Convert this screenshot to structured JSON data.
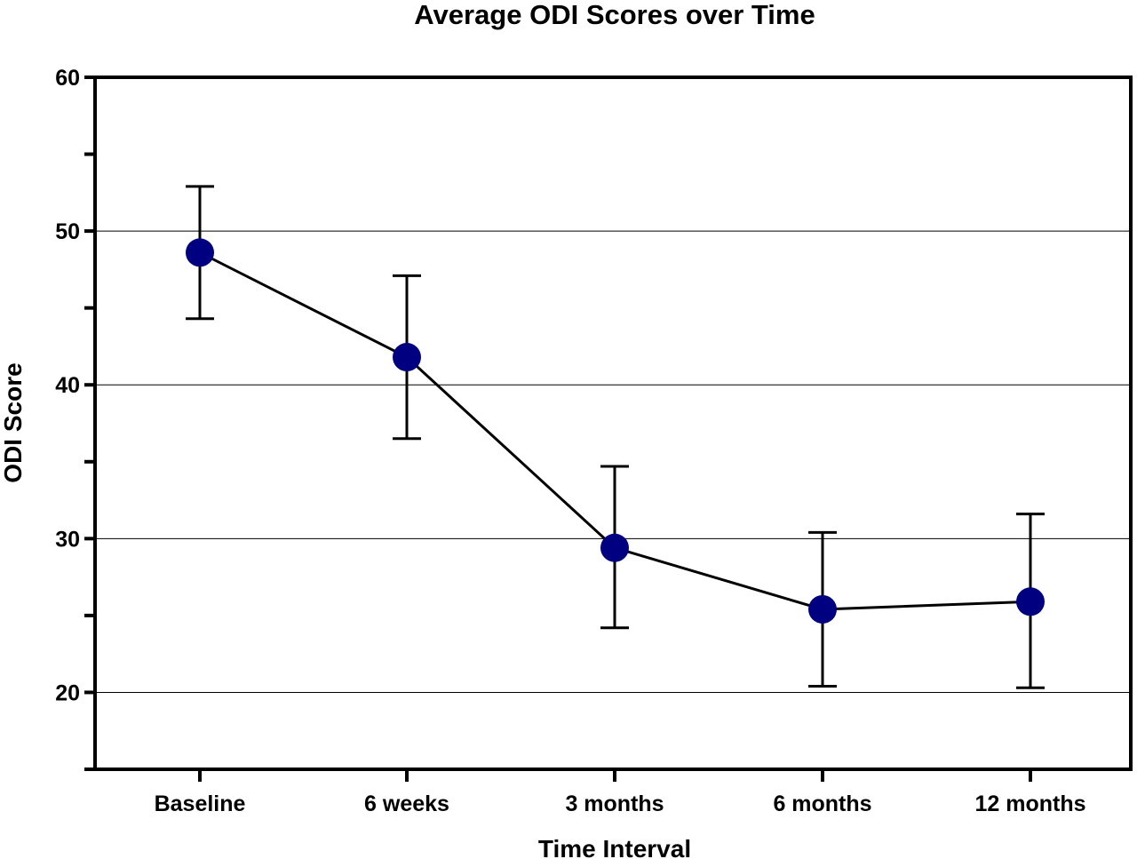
{
  "chart_data": {
    "type": "line",
    "title": "Average ODI Scores over Time",
    "xlabel": "Time Interval",
    "ylabel": "ODI Score",
    "categories": [
      "Baseline",
      "6 weeks",
      "3 months",
      "6 months",
      "12 months"
    ],
    "series": [
      {
        "values": [
          48.6,
          41.8,
          29.4,
          25.4,
          25.9
        ],
        "error_low": [
          44.3,
          36.5,
          24.2,
          20.4,
          20.3
        ],
        "error_high": [
          52.9,
          47.1,
          34.7,
          30.4,
          31.6
        ]
      }
    ],
    "ylim": [
      15,
      60
    ],
    "yticks_major": [
      20,
      30,
      40,
      50,
      60
    ],
    "yticks_minor": [
      15,
      25,
      35,
      45,
      55
    ],
    "grid": "horizontal",
    "legend": "none",
    "colors": {
      "marker": "#000080",
      "line": "#000000",
      "axis": "#000000",
      "grid": "#000000"
    }
  }
}
